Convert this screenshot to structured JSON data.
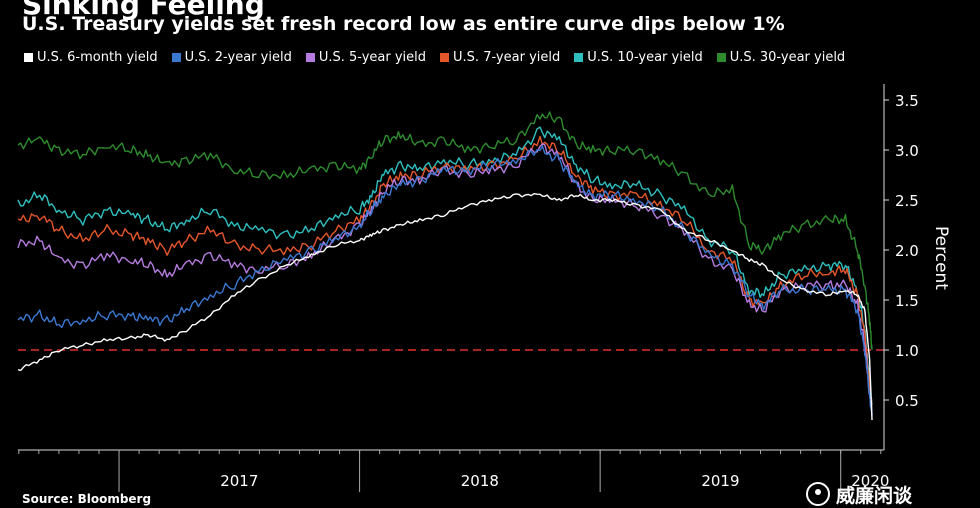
{
  "header": {
    "title": "Sinking Feeling",
    "subtitle": "U.S. Treasury yields set fresh record low as entire curve dips below 1%"
  },
  "footer": {
    "source": "Source: Bloomberg"
  },
  "watermark": {
    "text": "威廉闲谈"
  },
  "chart_data": {
    "type": "line",
    "title": "Sinking Feeling",
    "subtitle": "U.S. Treasury yields set fresh record low as entire curve dips below 1%",
    "ylabel": "Percent",
    "ylim": [
      0.0,
      3.7
    ],
    "yticks": [
      "0.5",
      "1.0",
      "1.5",
      "2.0",
      "2.5",
      "3.0",
      "3.5"
    ],
    "xlim": [
      2016.58,
      2020.18
    ],
    "x_tick_labels": [
      "2017",
      "2018",
      "2019",
      "2020"
    ],
    "reference_line": {
      "y": 1.0,
      "color": "#e03030",
      "style": "dashed"
    },
    "legend_position": "top",
    "grid": false,
    "series": [
      {
        "name": "U.S. 30-year yield",
        "color": "#2e8b2e",
        "x": [
          2016.58,
          2016.67,
          2016.75,
          2016.85,
          2016.95,
          2017.05,
          2017.12,
          2017.2,
          2017.28,
          2017.38,
          2017.48,
          2017.58,
          2017.7,
          2017.8,
          2017.9,
          2018.0,
          2018.05,
          2018.1,
          2018.17,
          2018.25,
          2018.35,
          2018.45,
          2018.55,
          2018.65,
          2018.75,
          2018.83,
          2018.9,
          2018.97,
          2019.05,
          2019.15,
          2019.25,
          2019.35,
          2019.45,
          2019.55,
          2019.62,
          2019.68,
          2019.75,
          2019.85,
          2019.95,
          2020.02,
          2020.07,
          2020.1,
          2020.12,
          2020.13
        ],
        "y": [
          3.05,
          3.1,
          3.0,
          2.95,
          3.05,
          3.0,
          2.95,
          2.85,
          2.9,
          2.95,
          2.8,
          2.75,
          2.75,
          2.8,
          2.85,
          2.8,
          2.95,
          3.1,
          3.15,
          3.05,
          3.1,
          3.0,
          3.05,
          3.1,
          3.35,
          3.3,
          3.05,
          3.0,
          3.0,
          3.0,
          2.9,
          2.75,
          2.55,
          2.6,
          2.05,
          2.0,
          2.15,
          2.25,
          2.3,
          2.3,
          2.0,
          1.65,
          1.3,
          1.0
        ]
      },
      {
        "name": "U.S. 10-year yield",
        "color": "#2fbfbf",
        "x": [
          2016.58,
          2016.67,
          2016.75,
          2016.85,
          2016.95,
          2017.05,
          2017.12,
          2017.2,
          2017.28,
          2017.38,
          2017.48,
          2017.58,
          2017.7,
          2017.8,
          2017.9,
          2018.0,
          2018.05,
          2018.1,
          2018.17,
          2018.25,
          2018.35,
          2018.45,
          2018.55,
          2018.65,
          2018.75,
          2018.83,
          2018.9,
          2018.97,
          2019.05,
          2019.15,
          2019.25,
          2019.35,
          2019.45,
          2019.55,
          2019.62,
          2019.68,
          2019.75,
          2019.85,
          2019.95,
          2020.02,
          2020.07,
          2020.1,
          2020.12,
          2020.13
        ],
        "y": [
          2.45,
          2.55,
          2.4,
          2.3,
          2.4,
          2.35,
          2.3,
          2.2,
          2.3,
          2.4,
          2.25,
          2.2,
          2.15,
          2.2,
          2.35,
          2.4,
          2.55,
          2.75,
          2.85,
          2.8,
          2.9,
          2.85,
          2.9,
          2.95,
          3.2,
          3.1,
          2.85,
          2.7,
          2.65,
          2.65,
          2.55,
          2.4,
          2.1,
          2.0,
          1.6,
          1.55,
          1.75,
          1.8,
          1.85,
          1.85,
          1.6,
          1.2,
          0.7,
          0.45
        ]
      },
      {
        "name": "U.S. 7-year yield",
        "color": "#e5572b",
        "x": [
          2016.58,
          2016.67,
          2016.75,
          2016.85,
          2016.95,
          2017.05,
          2017.12,
          2017.2,
          2017.28,
          2017.38,
          2017.48,
          2017.58,
          2017.7,
          2017.8,
          2017.9,
          2018.0,
          2018.05,
          2018.1,
          2018.17,
          2018.25,
          2018.35,
          2018.45,
          2018.55,
          2018.65,
          2018.75,
          2018.83,
          2018.9,
          2018.97,
          2019.05,
          2019.15,
          2019.25,
          2019.35,
          2019.45,
          2019.55,
          2019.62,
          2019.68,
          2019.75,
          2019.85,
          2019.95,
          2020.02,
          2020.07,
          2020.1,
          2020.12,
          2020.13
        ],
        "y": [
          2.3,
          2.35,
          2.2,
          2.1,
          2.2,
          2.15,
          2.1,
          2.0,
          2.1,
          2.2,
          2.05,
          2.0,
          2.0,
          2.05,
          2.2,
          2.3,
          2.45,
          2.65,
          2.75,
          2.75,
          2.85,
          2.8,
          2.85,
          2.9,
          3.1,
          3.0,
          2.75,
          2.6,
          2.55,
          2.55,
          2.45,
          2.3,
          2.0,
          1.9,
          1.5,
          1.45,
          1.65,
          1.75,
          1.78,
          1.8,
          1.55,
          1.15,
          0.65,
          0.4
        ]
      },
      {
        "name": "U.S. 5-year yield",
        "color": "#b57bde",
        "x": [
          2016.58,
          2016.67,
          2016.75,
          2016.85,
          2016.95,
          2017.05,
          2017.12,
          2017.2,
          2017.28,
          2017.38,
          2017.48,
          2017.58,
          2017.7,
          2017.8,
          2017.9,
          2018.0,
          2018.05,
          2018.1,
          2018.17,
          2018.25,
          2018.35,
          2018.45,
          2018.55,
          2018.65,
          2018.75,
          2018.83,
          2018.9,
          2018.97,
          2019.05,
          2019.15,
          2019.25,
          2019.35,
          2019.45,
          2019.55,
          2019.62,
          2019.68,
          2019.75,
          2019.85,
          2019.95,
          2020.02,
          2020.07,
          2020.1,
          2020.12,
          2020.13
        ],
        "y": [
          2.05,
          2.1,
          1.9,
          1.85,
          1.95,
          1.9,
          1.85,
          1.75,
          1.85,
          1.95,
          1.85,
          1.8,
          1.85,
          1.95,
          2.1,
          2.25,
          2.4,
          2.6,
          2.7,
          2.7,
          2.8,
          2.75,
          2.8,
          2.85,
          3.05,
          2.95,
          2.65,
          2.5,
          2.5,
          2.45,
          2.35,
          2.2,
          1.9,
          1.8,
          1.45,
          1.4,
          1.6,
          1.65,
          1.65,
          1.65,
          1.45,
          1.05,
          0.55,
          0.35
        ]
      },
      {
        "name": "U.S. 2-year yield",
        "color": "#3a78d0",
        "x": [
          2016.58,
          2016.67,
          2016.75,
          2016.85,
          2016.95,
          2017.05,
          2017.12,
          2017.2,
          2017.28,
          2017.38,
          2017.48,
          2017.58,
          2017.7,
          2017.8,
          2017.9,
          2018.0,
          2018.05,
          2018.1,
          2018.17,
          2018.25,
          2018.35,
          2018.45,
          2018.55,
          2018.65,
          2018.75,
          2018.83,
          2018.9,
          2018.97,
          2019.05,
          2019.15,
          2019.25,
          2019.35,
          2019.45,
          2019.55,
          2019.62,
          2019.68,
          2019.75,
          2019.85,
          2019.95,
          2020.02,
          2020.07,
          2020.1,
          2020.12,
          2020.13
        ],
        "y": [
          1.3,
          1.35,
          1.25,
          1.3,
          1.35,
          1.35,
          1.3,
          1.3,
          1.4,
          1.55,
          1.65,
          1.8,
          1.9,
          2.0,
          2.1,
          2.25,
          2.4,
          2.55,
          2.65,
          2.7,
          2.8,
          2.8,
          2.85,
          2.9,
          3.0,
          2.9,
          2.65,
          2.55,
          2.55,
          2.5,
          2.4,
          2.2,
          1.95,
          1.85,
          1.55,
          1.45,
          1.6,
          1.6,
          1.6,
          1.6,
          1.4,
          1.0,
          0.55,
          0.35
        ]
      },
      {
        "name": "U.S. 6-month yield",
        "color": "#ffffff",
        "x": [
          2016.58,
          2016.67,
          2016.75,
          2016.85,
          2016.95,
          2017.05,
          2017.12,
          2017.2,
          2017.28,
          2017.38,
          2017.48,
          2017.58,
          2017.7,
          2017.8,
          2017.9,
          2018.0,
          2018.05,
          2018.1,
          2018.17,
          2018.25,
          2018.35,
          2018.45,
          2018.55,
          2018.65,
          2018.75,
          2018.83,
          2018.9,
          2018.97,
          2019.05,
          2019.15,
          2019.25,
          2019.35,
          2019.45,
          2019.55,
          2019.62,
          2019.68,
          2019.75,
          2019.85,
          2019.95,
          2020.02,
          2020.07,
          2020.1,
          2020.12,
          2020.13
        ],
        "y": [
          0.8,
          0.9,
          1.0,
          1.05,
          1.1,
          1.12,
          1.15,
          1.1,
          1.2,
          1.35,
          1.55,
          1.7,
          1.85,
          1.95,
          2.05,
          2.1,
          2.15,
          2.2,
          2.25,
          2.3,
          2.35,
          2.45,
          2.5,
          2.55,
          2.55,
          2.5,
          2.55,
          2.5,
          2.5,
          2.45,
          2.4,
          2.2,
          2.1,
          2.0,
          1.9,
          1.85,
          1.7,
          1.6,
          1.55,
          1.6,
          1.55,
          1.4,
          0.9,
          0.3
        ]
      }
    ]
  }
}
